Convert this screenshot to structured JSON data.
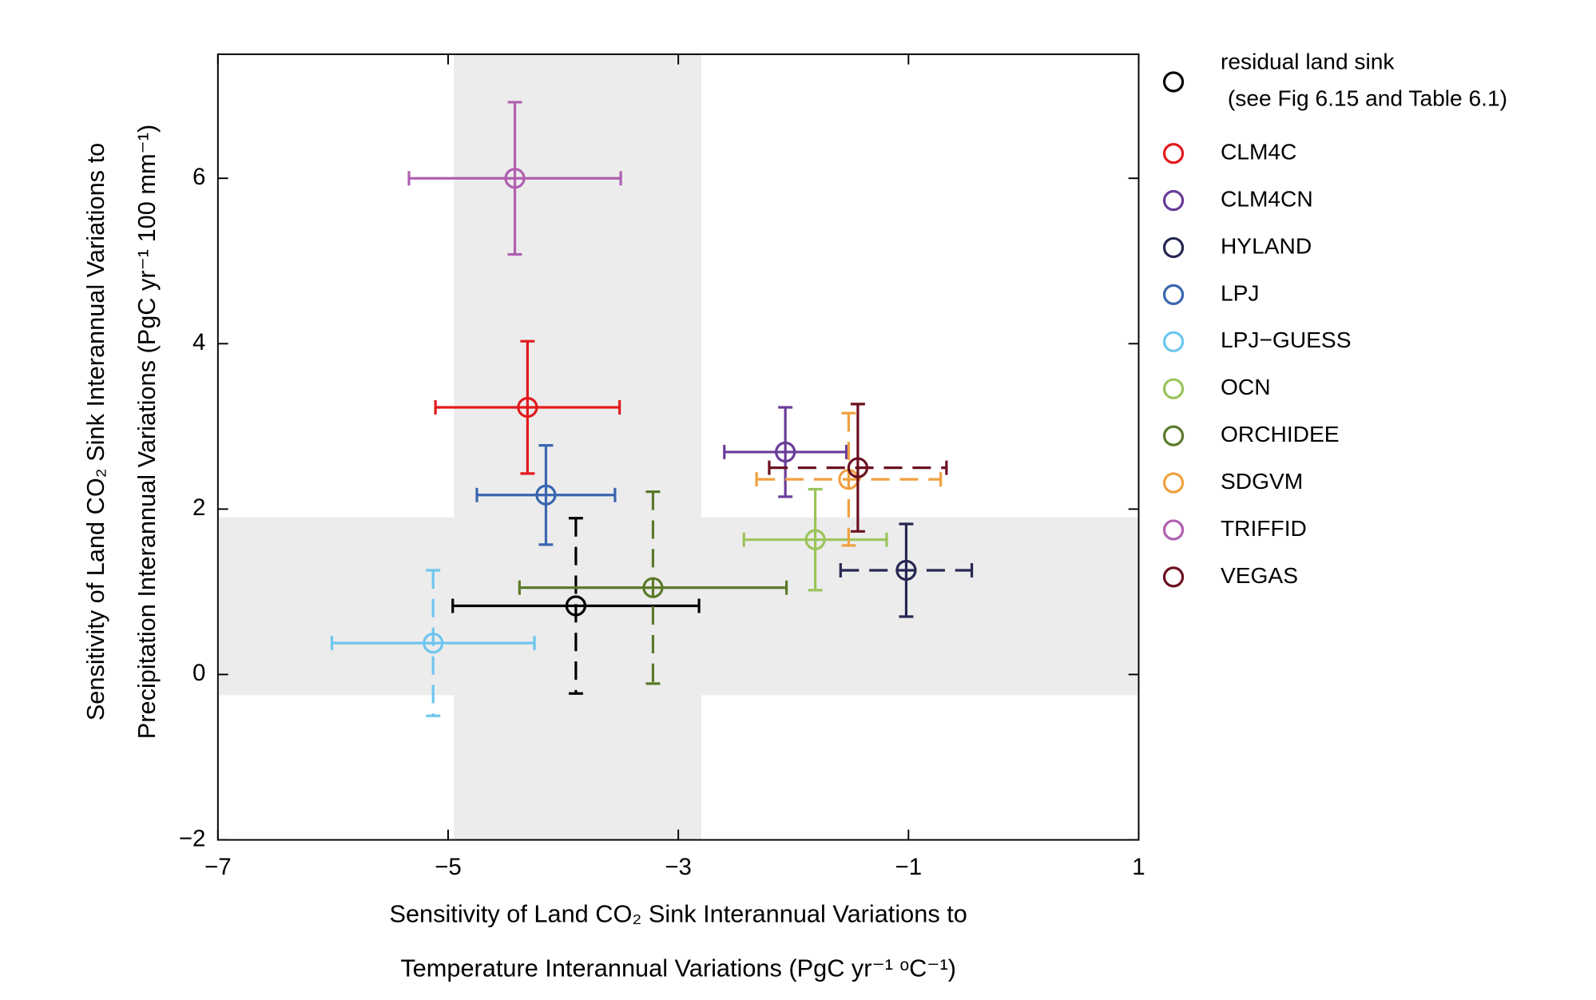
{
  "chart_data": {
    "type": "scatter",
    "xlabel": [
      "Sensitivity of Land CO₂ Sink Interannual Variations to",
      "Temperature Interannual Variations (PgC yr⁻¹ ᵒC⁻¹)"
    ],
    "ylabel": [
      "Sensitivity of Land CO₂ Sink Interannual Variations to",
      "Precipitation Interannual Variations (PgC yr⁻¹ 100 mm⁻¹)"
    ],
    "xlim": [
      -7,
      1
    ],
    "ylim": [
      -2,
      7.5
    ],
    "xticks": [
      {
        "value": -7,
        "label": "−7"
      },
      {
        "value": -5,
        "label": "−5"
      },
      {
        "value": -3,
        "label": "−3"
      },
      {
        "value": -1,
        "label": "−1"
      },
      1
    ],
    "yticks": [
      {
        "value": -2,
        "label": "−2"
      },
      0,
      2,
      4,
      6
    ],
    "shaded_xrange": [
      -4.95,
      -2.8
    ],
    "shaded_yrange": [
      -0.25,
      1.9
    ],
    "shade_color": "#ececec",
    "legend": "outside right",
    "series": [
      {
        "name": "residual land sink (see Fig 6.15 and Table 6.1)",
        "color": "#000000",
        "x": [
          -3.89
        ],
        "values": [
          0.83
        ],
        "xerr": [
          1.07
        ],
        "yerr": [
          1.06
        ],
        "xerr_linestyle": "solid",
        "yerr_linestyle": "dashed"
      },
      {
        "name": "CLM4C",
        "color": "#e31a1c",
        "x": [
          -4.31
        ],
        "values": [
          3.23
        ],
        "xerr": [
          0.8
        ],
        "yerr": [
          0.8
        ],
        "xerr_linestyle": "solid",
        "yerr_linestyle": "solid"
      },
      {
        "name": "CLM4CN",
        "color": "#6a3d9a",
        "x": [
          -2.07
        ],
        "values": [
          2.69
        ],
        "xerr": [
          0.53
        ],
        "yerr": [
          0.54
        ],
        "xerr_linestyle": "solid",
        "yerr_linestyle": "solid"
      },
      {
        "name": "HYLAND",
        "color": "#262752",
        "x": [
          -1.02
        ],
        "values": [
          1.26
        ],
        "xerr": [
          0.57
        ],
        "yerr": [
          0.56
        ],
        "xerr_linestyle": "dashed",
        "yerr_linestyle": "solid"
      },
      {
        "name": "LPJ",
        "color": "#3a66b0",
        "x": [
          -4.15
        ],
        "values": [
          2.17
        ],
        "xerr": [
          0.6
        ],
        "yerr": [
          0.6
        ],
        "xerr_linestyle": "solid",
        "yerr_linestyle": "solid"
      },
      {
        "name": "LPJ−GUESS",
        "color": "#6ec6ef",
        "x": [
          -5.13
        ],
        "values": [
          0.38
        ],
        "xerr": [
          0.88
        ],
        "yerr": [
          0.88
        ],
        "xerr_linestyle": "solid",
        "yerr_linestyle": "dashed"
      },
      {
        "name": "OCN",
        "color": "#9ac45a",
        "x": [
          -1.81
        ],
        "values": [
          1.63
        ],
        "xerr": [
          0.62
        ],
        "yerr": [
          0.61
        ],
        "xerr_linestyle": "solid",
        "yerr_linestyle": "solid"
      },
      {
        "name": "ORCHIDEE",
        "color": "#5a7a2a",
        "x": [
          -3.22
        ],
        "values": [
          1.05
        ],
        "xerr": [
          1.16
        ],
        "yerr": [
          1.16
        ],
        "xerr_linestyle": "solid",
        "yerr_linestyle": "dashed"
      },
      {
        "name": "SDGVM",
        "color": "#f0a040",
        "x": [
          -1.52
        ],
        "values": [
          2.36
        ],
        "xerr": [
          0.8
        ],
        "yerr": [
          0.8
        ],
        "xerr_linestyle": "dashed",
        "yerr_linestyle": "dashed"
      },
      {
        "name": "TRIFFID",
        "color": "#b05fb0",
        "x": [
          -4.42
        ],
        "values": [
          6.0
        ],
        "xerr": [
          0.92
        ],
        "yerr": [
          0.92
        ],
        "xerr_linestyle": "solid",
        "yerr_linestyle": "solid"
      },
      {
        "name": "VEGAS",
        "color": "#6b1020",
        "x": [
          -1.44
        ],
        "values": [
          2.5
        ],
        "xerr": [
          0.77
        ],
        "yerr": [
          0.77
        ],
        "xerr_linestyle": "dashed",
        "yerr_linestyle": "solid"
      }
    ]
  }
}
